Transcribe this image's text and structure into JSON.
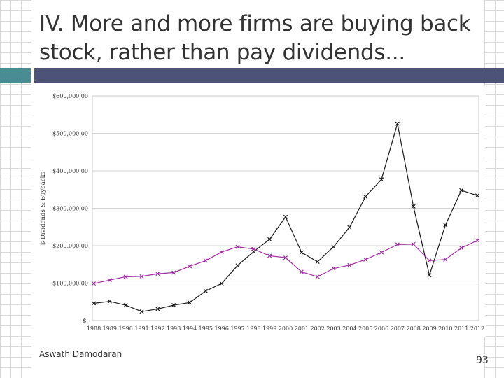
{
  "slide": {
    "title": "IV. More and more firms are buying back stock, rather than pay dividends...",
    "author": "Aswath Damodaran",
    "page_number": "93",
    "accent_color": "#4a8c94",
    "bar_color": "#4d5279"
  },
  "chart_data": {
    "type": "line",
    "title": "",
    "xlabel": "",
    "ylabel": "$ Dividends & Buybacks",
    "categories": [
      "1988",
      "1989",
      "1990",
      "1991",
      "1992",
      "1993",
      "1994",
      "1995",
      "1996",
      "1997",
      "1998",
      "1999",
      "2000",
      "2001",
      "2002",
      "2003",
      "2004",
      "2005",
      "2006",
      "2007",
      "2008",
      "2009",
      "2010",
      "2011",
      "2012"
    ],
    "y_tick_labels": [
      "$-",
      "$100,000.00",
      "$200,000.00",
      "$300,000.00",
      "$400,000.00",
      "$500,000.00",
      "$600,000.00"
    ],
    "ylim": [
      0,
      600000
    ],
    "grid": true,
    "legend": "none",
    "series": [
      {
        "color": "#1a1a1a",
        "values": [
          46000,
          51000,
          41000,
          24000,
          31000,
          41000,
          48000,
          79000,
          99000,
          147000,
          184000,
          217000,
          277000,
          182000,
          157000,
          197000,
          249000,
          331000,
          377000,
          526000,
          305000,
          121000,
          255000,
          348000,
          334000
        ]
      },
      {
        "color": "#a12ea1",
        "values": [
          99000,
          108000,
          117000,
          118000,
          125000,
          128000,
          145000,
          160000,
          183000,
          197000,
          191000,
          173000,
          168000,
          130000,
          117000,
          139000,
          148000,
          163000,
          182000,
          203000,
          204000,
          160000,
          163000,
          194000,
          214000
        ]
      }
    ]
  }
}
